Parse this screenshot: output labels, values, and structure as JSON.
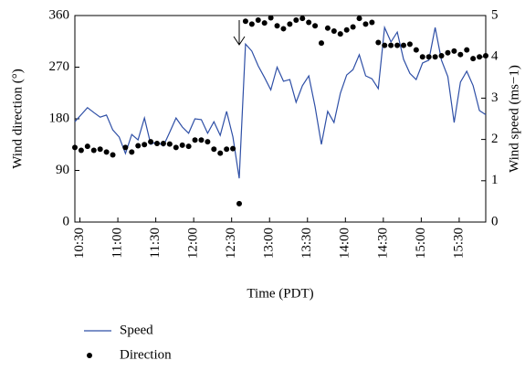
{
  "chart_data": {
    "type": "line",
    "x_label": "Time (PDT)",
    "y_label": "Wind direction (°)",
    "y2_label": "Wind speed (ms−1)",
    "x": [
      626,
      631,
      636,
      641,
      646,
      651,
      656,
      661,
      666,
      671,
      676,
      681,
      686,
      691,
      696,
      701,
      706,
      711,
      716,
      721,
      726,
      731,
      736,
      741,
      746,
      751,
      756,
      761,
      766,
      771,
      776,
      781,
      786,
      791,
      796,
      801,
      806,
      811,
      816,
      821,
      826,
      831,
      836,
      841,
      846,
      851,
      856,
      861,
      866,
      871,
      876,
      881,
      886,
      891,
      896,
      901,
      906,
      911,
      916,
      921,
      926,
      931,
      936,
      941,
      946,
      951
    ],
    "series": [
      {
        "name": "Speed",
        "type": "line",
        "axis": "y2",
        "color": "#2e4fa6",
        "values": [
          2.43,
          2.6,
          2.77,
          2.65,
          2.54,
          2.59,
          2.23,
          2.06,
          1.66,
          2.12,
          1.99,
          2.52,
          1.88,
          1.95,
          1.84,
          2.17,
          2.52,
          2.3,
          2.15,
          2.5,
          2.48,
          2.15,
          2.43,
          2.1,
          2.68,
          2.06,
          1.06,
          4.31,
          4.14,
          3.78,
          3.5,
          3.2,
          3.75,
          3.41,
          3.45,
          2.9,
          3.3,
          3.54,
          2.79,
          1.88,
          2.68,
          2.41,
          3.12,
          3.56,
          3.69,
          4.05,
          3.54,
          3.47,
          3.23,
          4.71,
          4.36,
          4.6,
          3.94,
          3.6,
          3.45,
          3.85,
          3.92,
          4.71,
          3.92,
          3.52,
          2.41,
          3.39,
          3.65,
          3.3,
          2.7,
          2.6
        ]
      },
      {
        "name": "Direction",
        "type": "scatter",
        "axis": "y",
        "color": "#000000",
        "values": [
          130,
          125,
          132,
          125,
          127,
          122,
          117,
          null,
          130,
          122,
          133,
          135,
          140,
          137,
          137,
          136,
          130,
          134,
          132,
          143,
          143,
          140,
          127,
          120,
          127,
          128,
          32,
          350,
          345,
          352,
          347,
          356,
          342,
          337,
          345,
          352,
          355,
          348,
          342,
          312,
          338,
          333,
          328,
          335,
          340,
          355,
          345,
          348,
          313,
          308,
          308,
          308,
          308,
          310,
          300,
          288,
          288,
          288,
          290,
          295,
          298,
          292,
          300,
          285,
          288,
          290
        ]
      }
    ],
    "xlim": [
      626,
      951
    ],
    "xticks": [
      {
        "value": 630,
        "label": "10:30"
      },
      {
        "value": 660,
        "label": "11:00"
      },
      {
        "value": 690,
        "label": "11:30"
      },
      {
        "value": 720,
        "label": "12:00"
      },
      {
        "value": 750,
        "label": "12:30"
      },
      {
        "value": 780,
        "label": "13:00"
      },
      {
        "value": 810,
        "label": "13:30"
      },
      {
        "value": 840,
        "label": "14:00"
      },
      {
        "value": 870,
        "label": "14:30"
      },
      {
        "value": 900,
        "label": "15:00"
      },
      {
        "value": 930,
        "label": "15:30"
      }
    ],
    "ylim": [
      0,
      360
    ],
    "yticks": [
      0,
      90,
      180,
      270,
      360
    ],
    "y2lim": [
      0,
      5
    ],
    "y2ticks": [
      0,
      1,
      2,
      3,
      4,
      5
    ],
    "legend": "bottom-left"
  }
}
